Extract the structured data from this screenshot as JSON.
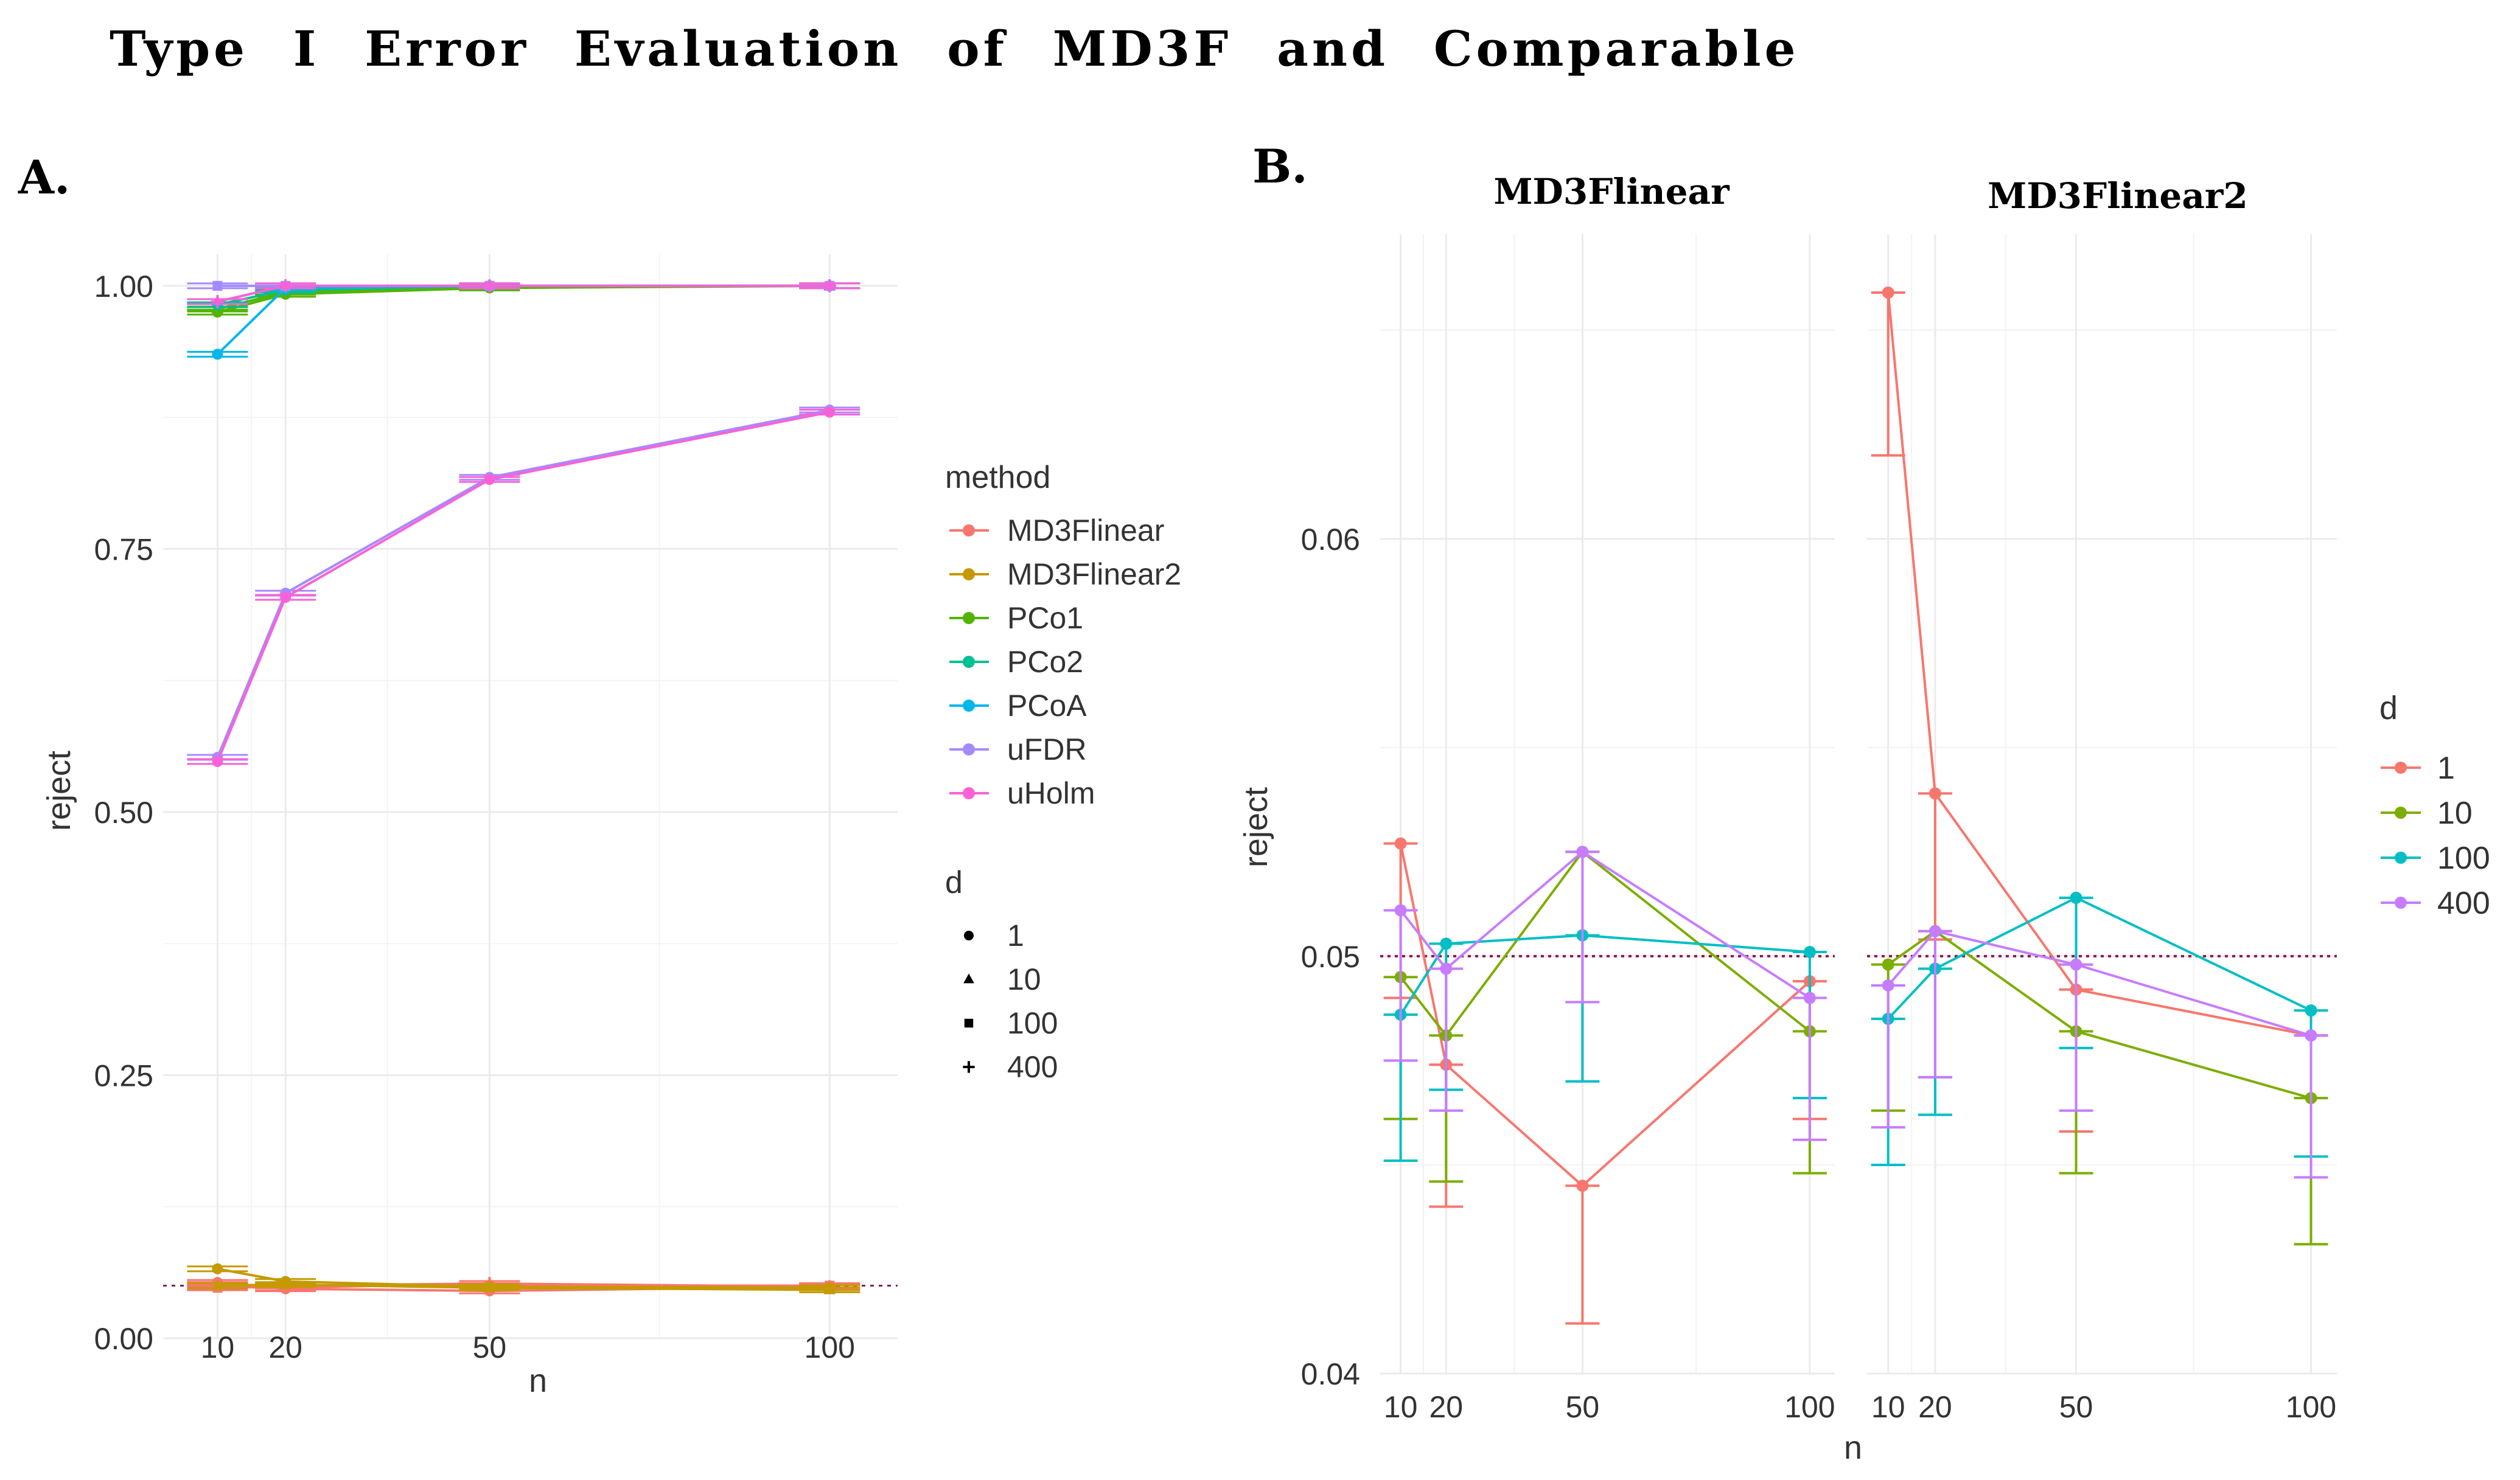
{
  "page_title": "Type I Error Evaluation of MD3F and Comparable",
  "colors": {
    "MD3Flinear": "#F8766D",
    "MD3Flinear2": "#C49A00",
    "PCo1": "#53B400",
    "PCo2": "#00C094",
    "PCoA": "#00B6EB",
    "uFDR": "#A58AFF",
    "uHolm": "#FB61D7",
    "d1": "#F8766D",
    "d10": "#7CAE00",
    "d100": "#00BFC4",
    "d400": "#C77CFF",
    "reference": "#8B1A4B",
    "grid": "#EBEBEB"
  },
  "chart_data": [
    {
      "panel_label": "A.",
      "type": "line",
      "xlabel": "n",
      "ylabel": "reject",
      "x": [
        10,
        20,
        50,
        100
      ],
      "x_tick_labels": [
        "10",
        "20",
        "50",
        "100"
      ],
      "xlim": [
        2,
        110
      ],
      "ylim": [
        0,
        1.03
      ],
      "y_ticks": [
        0.0,
        0.25,
        0.5,
        0.75,
        1.0
      ],
      "y_tick_labels": [
        "0.00",
        "0.25",
        "0.50",
        "0.75",
        "1.00"
      ],
      "reference_line": 0.05,
      "legend_method_title": "method",
      "legend_d_title": "d",
      "legend_method": [
        "MD3Flinear",
        "MD3Flinear2",
        "PCo1",
        "PCo2",
        "PCoA",
        "uFDR",
        "uHolm"
      ],
      "legend_d": [
        {
          "label": "1",
          "shape": "circle"
        },
        {
          "label": "10",
          "shape": "triangle"
        },
        {
          "label": "100",
          "shape": "square"
        },
        {
          "label": "400",
          "shape": "plus"
        }
      ],
      "series": [
        {
          "method": "MD3Flinear",
          "d": "1",
          "values": [
            0.053,
            0.047,
            0.045,
            0.049
          ]
        },
        {
          "method": "MD3Flinear",
          "d": "10",
          "values": [
            0.049,
            0.048,
            0.052,
            0.048
          ]
        },
        {
          "method": "MD3Flinear",
          "d": "100",
          "values": [
            0.048,
            0.05,
            0.05,
            0.05
          ]
        },
        {
          "method": "MD3Flinear",
          "d": "400",
          "values": [
            0.051,
            0.05,
            0.052,
            0.049
          ]
        },
        {
          "method": "MD3Flinear2",
          "d": "1",
          "values": [
            0.066,
            0.054,
            0.049,
            0.048
          ]
        },
        {
          "method": "MD3Flinear2",
          "d": "10",
          "values": [
            0.05,
            0.051,
            0.048,
            0.046
          ]
        },
        {
          "method": "PCo1",
          "d": "1",
          "values": [
            0.975,
            0.992,
            0.998,
            1.0
          ]
        },
        {
          "method": "PCo1",
          "d": "10",
          "values": [
            0.978,
            0.994,
            0.999,
            1.0
          ]
        },
        {
          "method": "PCo2",
          "d": "1",
          "values": [
            0.982,
            0.996,
            1.0,
            1.0
          ]
        },
        {
          "method": "PCoA",
          "d": "1",
          "values": [
            0.935,
            0.998,
            1.0,
            1.0
          ]
        },
        {
          "method": "PCoA",
          "d": "10",
          "values": [
            0.985,
            1.0,
            1.0,
            1.0
          ]
        },
        {
          "method": "uFDR",
          "d": "1",
          "values": [
            0.552,
            0.708,
            0.818,
            0.882
          ]
        },
        {
          "method": "uFDR",
          "d": "100",
          "values": [
            1.0,
            1.0,
            1.0,
            1.0
          ]
        },
        {
          "method": "uHolm",
          "d": "1",
          "values": [
            0.548,
            0.704,
            0.816,
            0.88
          ]
        },
        {
          "method": "uHolm",
          "d": "400",
          "values": [
            0.985,
            1.0,
            1.0,
            1.0
          ]
        }
      ]
    },
    {
      "panel_label": "B.",
      "type": "line",
      "xlabel": "n",
      "ylabel": "reject",
      "x": [
        10,
        20,
        50,
        100
      ],
      "x_tick_labels": [
        "10",
        "20",
        "50",
        "100"
      ],
      "xlim": [
        5.5,
        105.5
      ],
      "ylim": [
        0.04,
        0.0673
      ],
      "y_ticks": [
        0.04,
        0.05,
        0.06
      ],
      "y_tick_labels": [
        "0.04",
        "0.05",
        "0.06"
      ],
      "reference_line": 0.05,
      "legend_title": "d",
      "legend": [
        "1",
        "10",
        "100",
        "400"
      ],
      "facets": [
        {
          "title": "MD3Flinear",
          "series": [
            {
              "d": "1",
              "values": [
                0.0527,
                0.0474,
                0.0445,
                0.0494
              ],
              "lower": [
                0.049,
                0.044,
                0.0412,
                0.0461
              ],
              "upper": [
                0.0527,
                0.0474,
                0.0445,
                0.0494
              ]
            },
            {
              "d": "10",
              "values": [
                0.0495,
                0.0481,
                0.0525,
                0.0482
              ],
              "lower": [
                0.0461,
                0.0446,
                0.0525,
                0.0448
              ],
              "upper": [
                0.0495,
                0.0481,
                0.0525,
                0.0482
              ]
            },
            {
              "d": "100",
              "values": [
                0.0486,
                0.0503,
                0.0505,
                0.0501
              ],
              "lower": [
                0.0451,
                0.0468,
                0.047,
                0.0466
              ],
              "upper": [
                0.0486,
                0.0503,
                0.0505,
                0.0501
              ]
            },
            {
              "d": "400",
              "values": [
                0.0511,
                0.0497,
                0.0525,
                0.049
              ],
              "lower": [
                0.0475,
                0.0463,
                0.0489,
                0.0456
              ],
              "upper": [
                0.0511,
                0.0497,
                0.0525,
                0.049
              ]
            }
          ]
        },
        {
          "title": "MD3Flinear2",
          "series": [
            {
              "d": "1",
              "values": [
                0.0659,
                0.0539,
                0.0492,
                0.0481
              ],
              "lower": [
                0.062,
                0.0504,
                0.0458,
                0.0481
              ],
              "upper": [
                0.0659,
                0.0539,
                0.0492,
                0.0481
              ]
            },
            {
              "d": "10",
              "values": [
                0.0498,
                0.0506,
                0.0482,
                0.0466
              ],
              "lower": [
                0.0463,
                0.0471,
                0.0448,
                0.0431
              ],
              "upper": [
                0.0498,
                0.0506,
                0.0482,
                0.0466
              ]
            },
            {
              "d": "100",
              "values": [
                0.0485,
                0.0497,
                0.0514,
                0.0487
              ],
              "lower": [
                0.045,
                0.0462,
                0.0478,
                0.0452
              ],
              "upper": [
                0.0485,
                0.0497,
                0.0514,
                0.0487
              ]
            },
            {
              "d": "400",
              "values": [
                0.0493,
                0.0506,
                0.0498,
                0.0481
              ],
              "lower": [
                0.0459,
                0.0471,
                0.0463,
                0.0447
              ],
              "upper": [
                0.0493,
                0.0506,
                0.0498,
                0.0481
              ]
            }
          ]
        }
      ]
    }
  ]
}
